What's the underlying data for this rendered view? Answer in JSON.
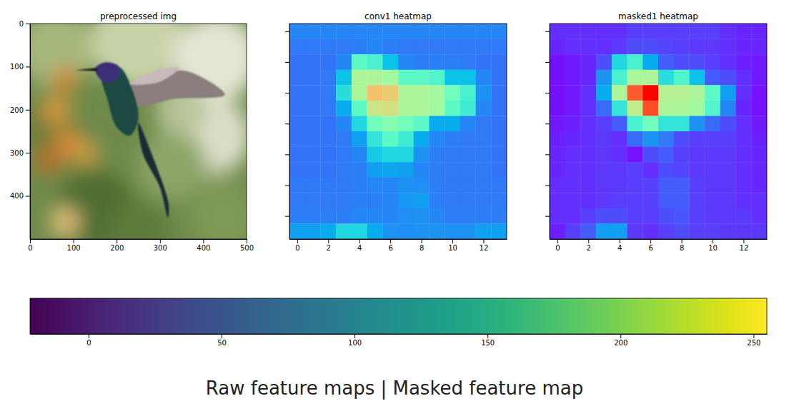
{
  "title": "Raw feature maps | Masked feature map",
  "chart_data": [
    {
      "type": "image",
      "title": "preprocessed img",
      "xlim": [
        0,
        500
      ],
      "ylim": [
        500,
        0
      ],
      "xticks": [
        0,
        100,
        200,
        300,
        400,
        500
      ],
      "yticks": [
        0,
        100,
        200,
        300,
        400
      ]
    },
    {
      "type": "heatmap",
      "title": "conv1 heatmap",
      "xlim": [
        -0.5,
        13.5
      ],
      "ylim": [
        13.5,
        -0.5
      ],
      "xticks": [
        0,
        2,
        4,
        6,
        8,
        10,
        12
      ],
      "yticks": [
        0,
        2,
        4,
        6,
        8,
        10,
        12
      ],
      "tick_labels": "x",
      "zlim": [
        0,
        255
      ],
      "values": [
        [
          45,
          45,
          45,
          45,
          45,
          45,
          45,
          45,
          45,
          45,
          45,
          45,
          45,
          45
        ],
        [
          40,
          40,
          40,
          40,
          42,
          45,
          42,
          40,
          40,
          40,
          40,
          40,
          40,
          40
        ],
        [
          38,
          38,
          38,
          45,
          110,
          100,
          70,
          45,
          42,
          42,
          42,
          40,
          38,
          38
        ],
        [
          38,
          38,
          40,
          70,
          150,
          150,
          145,
          110,
          110,
          105,
          70,
          70,
          45,
          38
        ],
        [
          38,
          38,
          40,
          85,
          150,
          185,
          180,
          150,
          150,
          145,
          120,
          100,
          50,
          38
        ],
        [
          38,
          38,
          40,
          60,
          110,
          165,
          170,
          150,
          150,
          145,
          110,
          95,
          45,
          38
        ],
        [
          38,
          38,
          38,
          45,
          80,
          120,
          130,
          120,
          110,
          60,
          60,
          45,
          40,
          38
        ],
        [
          38,
          38,
          38,
          40,
          55,
          90,
          110,
          95,
          60,
          45,
          42,
          40,
          40,
          38
        ],
        [
          38,
          38,
          38,
          40,
          45,
          75,
          80,
          80,
          50,
          42,
          40,
          40,
          40,
          38
        ],
        [
          38,
          38,
          38,
          40,
          42,
          55,
          58,
          55,
          45,
          42,
          40,
          40,
          40,
          38
        ],
        [
          40,
          40,
          40,
          40,
          42,
          45,
          45,
          50,
          48,
          42,
          40,
          40,
          40,
          40
        ],
        [
          40,
          40,
          40,
          40,
          42,
          42,
          45,
          52,
          55,
          42,
          40,
          40,
          40,
          40
        ],
        [
          42,
          42,
          42,
          42,
          45,
          45,
          45,
          48,
          50,
          45,
          42,
          42,
          42,
          42
        ],
        [
          55,
          55,
          60,
          80,
          80,
          60,
          50,
          48,
          50,
          50,
          50,
          50,
          55,
          55
        ]
      ]
    },
    {
      "type": "heatmap",
      "title": "masked1 heatmap",
      "xlim": [
        -0.5,
        13.5
      ],
      "ylim": [
        13.5,
        -0.5
      ],
      "xticks": [
        0,
        2,
        4,
        6,
        8,
        10,
        12
      ],
      "yticks": [
        0,
        2,
        4,
        6,
        8,
        10,
        12
      ],
      "tick_labels": "x",
      "zlim": [
        0,
        255
      ],
      "values": [
        [
          15,
          15,
          15,
          15,
          15,
          20,
          20,
          20,
          20,
          20,
          20,
          15,
          12,
          12
        ],
        [
          12,
          15,
          15,
          15,
          18,
          25,
          25,
          22,
          20,
          18,
          18,
          15,
          12,
          12
        ],
        [
          5,
          8,
          12,
          25,
          80,
          100,
          60,
          30,
          25,
          25,
          20,
          15,
          10,
          8
        ],
        [
          5,
          8,
          12,
          50,
          100,
          150,
          150,
          85,
          105,
          70,
          30,
          25,
          15,
          8
        ],
        [
          5,
          8,
          15,
          60,
          150,
          225,
          255,
          155,
          155,
          150,
          110,
          55,
          15,
          5
        ],
        [
          5,
          8,
          15,
          35,
          90,
          160,
          230,
          150,
          150,
          145,
          105,
          45,
          12,
          5
        ],
        [
          8,
          10,
          15,
          20,
          30,
          100,
          120,
          90,
          90,
          50,
          35,
          25,
          15,
          8
        ],
        [
          10,
          12,
          15,
          18,
          15,
          35,
          50,
          40,
          25,
          20,
          20,
          20,
          15,
          10
        ],
        [
          12,
          15,
          15,
          18,
          15,
          5,
          25,
          30,
          20,
          18,
          18,
          18,
          15,
          12
        ],
        [
          12,
          15,
          15,
          18,
          18,
          20,
          15,
          25,
          22,
          18,
          18,
          18,
          15,
          12
        ],
        [
          15,
          15,
          15,
          18,
          18,
          20,
          20,
          30,
          30,
          20,
          18,
          18,
          15,
          12
        ],
        [
          15,
          15,
          15,
          18,
          20,
          20,
          20,
          30,
          30,
          20,
          18,
          18,
          15,
          15
        ],
        [
          15,
          15,
          20,
          25,
          25,
          20,
          20,
          25,
          28,
          20,
          18,
          18,
          18,
          15
        ],
        [
          10,
          20,
          30,
          55,
          55,
          18,
          15,
          20,
          25,
          20,
          20,
          18,
          18,
          18
        ]
      ]
    },
    {
      "type": "colorbar",
      "xlim": [
        -22,
        255
      ],
      "xticks": [
        0,
        50,
        100,
        150,
        200,
        250
      ]
    }
  ]
}
